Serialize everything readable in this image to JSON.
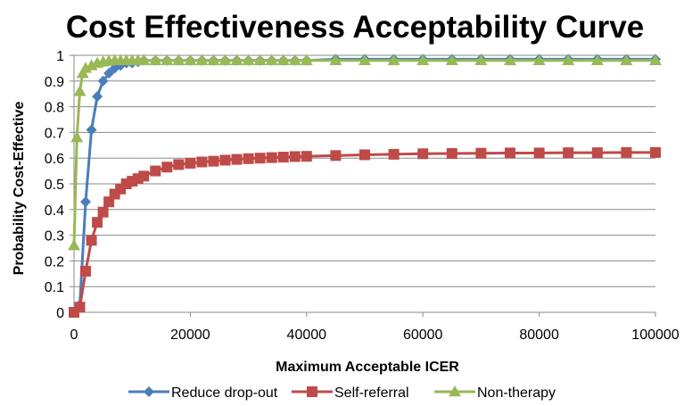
{
  "chart_data": {
    "type": "line",
    "title": "Cost Effectiveness Acceptability Curve",
    "xlabel": "Maximum Acceptable ICER",
    "ylabel": "Probability Cost-Effective",
    "xlim": [
      0,
      100000
    ],
    "ylim": [
      0,
      1
    ],
    "x_ticks": [
      "0",
      "20000",
      "40000",
      "60000",
      "80000",
      "100000"
    ],
    "y_ticks": [
      "0",
      "0.1",
      "0.2",
      "0.3",
      "0.4",
      "0.5",
      "0.6",
      "0.7",
      "0.8",
      "0.9",
      "1"
    ],
    "grid": true,
    "legend_position": "bottom",
    "series": [
      {
        "name": "Reduce drop-out",
        "color": "#4a7ebb",
        "marker": "diamond",
        "x": [
          0,
          1000,
          2000,
          3000,
          4000,
          5000,
          6000,
          7000,
          8000,
          9000,
          10000,
          11000,
          12000,
          14000,
          16000,
          18000,
          20000,
          22000,
          24000,
          26000,
          28000,
          30000,
          32000,
          34000,
          36000,
          38000,
          40000,
          45000,
          50000,
          55000,
          60000,
          65000,
          70000,
          75000,
          80000,
          85000,
          90000,
          95000,
          100000
        ],
        "y": [
          0.0,
          0.03,
          0.43,
          0.71,
          0.84,
          0.9,
          0.93,
          0.95,
          0.96,
          0.97,
          0.97,
          0.975,
          0.98,
          0.98,
          0.98,
          0.98,
          0.98,
          0.98,
          0.98,
          0.98,
          0.98,
          0.98,
          0.98,
          0.98,
          0.98,
          0.98,
          0.98,
          0.985,
          0.985,
          0.985,
          0.985,
          0.985,
          0.985,
          0.985,
          0.985,
          0.985,
          0.985,
          0.985,
          0.985
        ]
      },
      {
        "name": "Self-referral",
        "color": "#be4b48",
        "marker": "square",
        "x": [
          0,
          1000,
          2000,
          3000,
          4000,
          5000,
          6000,
          7000,
          8000,
          9000,
          10000,
          11000,
          12000,
          14000,
          16000,
          18000,
          20000,
          22000,
          24000,
          26000,
          28000,
          30000,
          32000,
          34000,
          36000,
          38000,
          40000,
          45000,
          50000,
          55000,
          60000,
          65000,
          70000,
          75000,
          80000,
          85000,
          90000,
          95000,
          100000
        ],
        "y": [
          0.0,
          0.02,
          0.16,
          0.28,
          0.35,
          0.39,
          0.43,
          0.46,
          0.48,
          0.5,
          0.51,
          0.52,
          0.53,
          0.55,
          0.565,
          0.575,
          0.58,
          0.585,
          0.588,
          0.592,
          0.595,
          0.598,
          0.6,
          0.602,
          0.604,
          0.606,
          0.607,
          0.61,
          0.613,
          0.615,
          0.617,
          0.618,
          0.619,
          0.62,
          0.62,
          0.621,
          0.621,
          0.622,
          0.622
        ]
      },
      {
        "name": "Non-therapy",
        "color": "#98b954",
        "marker": "triangle",
        "x": [
          0,
          500,
          1000,
          1500,
          2000,
          3000,
          4000,
          5000,
          6000,
          7000,
          8000,
          9000,
          10000,
          11000,
          12000,
          14000,
          16000,
          18000,
          20000,
          22000,
          24000,
          26000,
          28000,
          30000,
          32000,
          34000,
          36000,
          38000,
          40000,
          45000,
          50000,
          55000,
          60000,
          65000,
          70000,
          75000,
          80000,
          85000,
          90000,
          95000,
          100000
        ],
        "y": [
          0.26,
          0.68,
          0.86,
          0.93,
          0.95,
          0.96,
          0.97,
          0.975,
          0.978,
          0.98,
          0.98,
          0.98,
          0.98,
          0.98,
          0.98,
          0.98,
          0.98,
          0.98,
          0.98,
          0.98,
          0.98,
          0.98,
          0.98,
          0.98,
          0.98,
          0.98,
          0.98,
          0.98,
          0.98,
          0.98,
          0.98,
          0.98,
          0.98,
          0.98,
          0.98,
          0.98,
          0.98,
          0.98,
          0.98,
          0.98,
          0.98
        ]
      }
    ]
  }
}
